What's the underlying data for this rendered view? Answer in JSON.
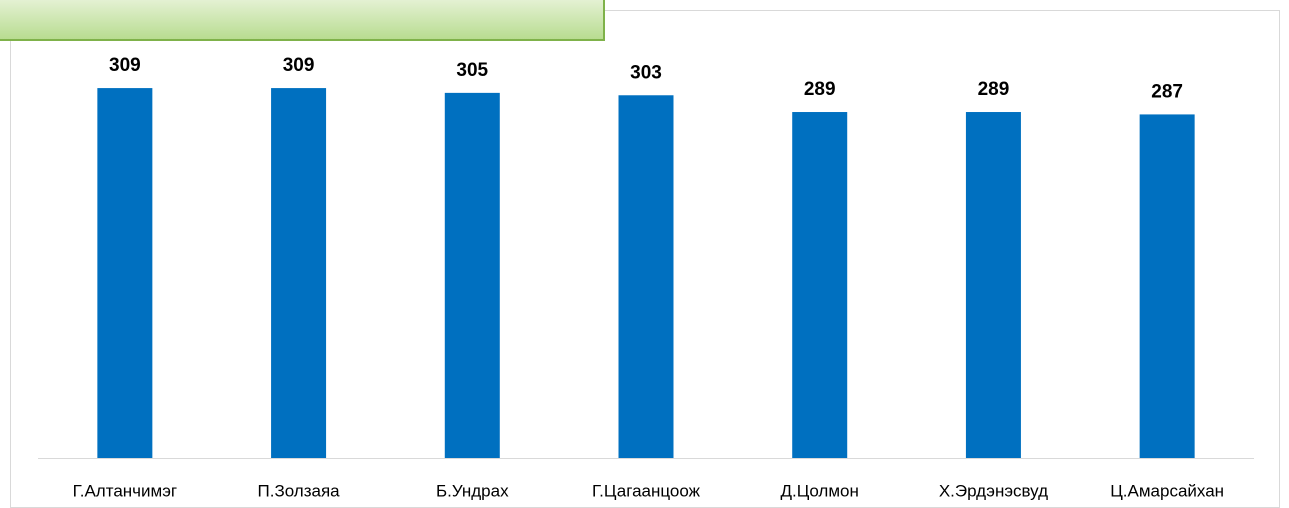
{
  "chart_data": {
    "type": "bar",
    "categories": [
      "Г.Алтанчимэг",
      "П.Золзаяа",
      "Б.Ундрах",
      "Г.Цагаанцоож",
      "Д.Цолмон",
      "Х.Эрдэнэсвуд",
      "Ц.Амарсайхан"
    ],
    "values": [
      309,
      309,
      305,
      303,
      289,
      289,
      287
    ],
    "color": "#0070c0",
    "ylim": [
      0,
      350
    ]
  }
}
